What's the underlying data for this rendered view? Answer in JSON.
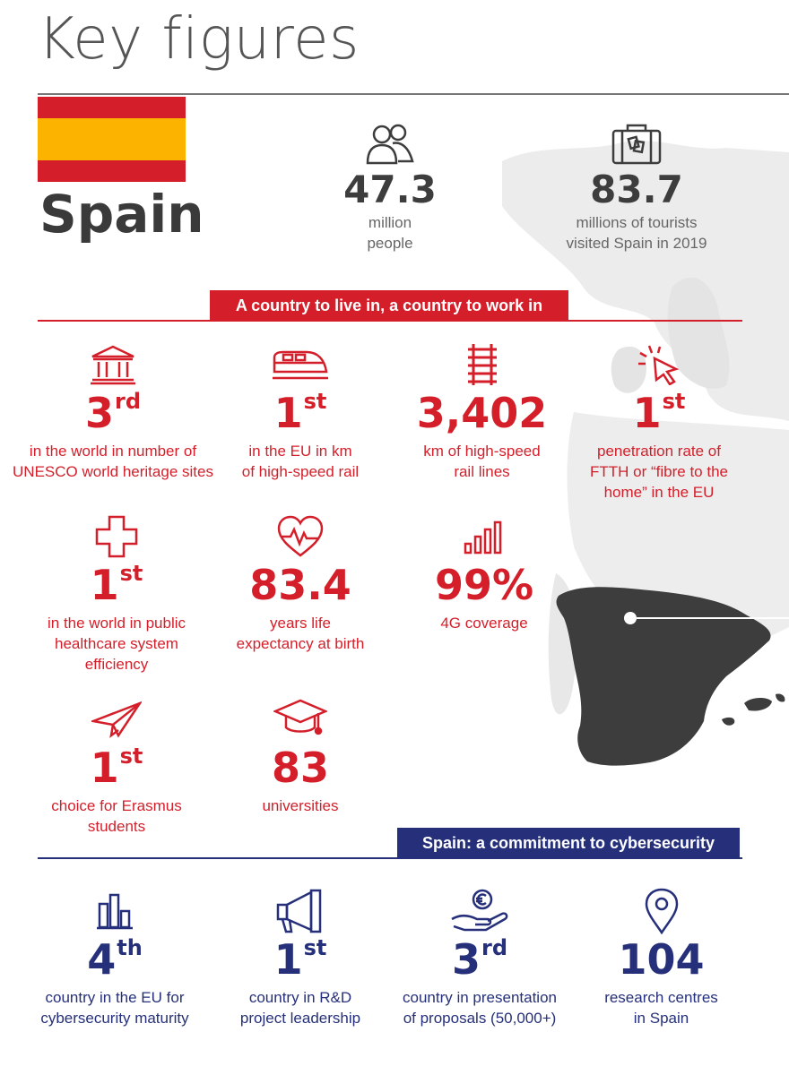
{
  "title": "Key figures",
  "country": "Spain",
  "colors": {
    "red": "#d41f2a",
    "blue": "#26307a",
    "flag_red": "#d41f2a",
    "flag_yellow": "#fbb300",
    "map_dark": "#3d3d3d"
  },
  "hero": [
    {
      "icon": "people-icon",
      "value": "47.3",
      "label_lines": [
        "million",
        "people"
      ]
    },
    {
      "icon": "suitcase-icon",
      "value": "83.7",
      "label_lines": [
        "millions of tourists",
        "visited Spain in 2019"
      ]
    }
  ],
  "section_live": {
    "banner": "A country to live in, a country to work in",
    "items": [
      {
        "icon": "museum-icon",
        "value": "3",
        "suffix": "rd",
        "label_lines": [
          "in the world in number of",
          "UNESCO world heritage sites"
        ]
      },
      {
        "icon": "high-speed-train-icon",
        "value": "1",
        "suffix": "st",
        "label_lines": [
          "in the EU in km",
          "of high-speed rail"
        ]
      },
      {
        "icon": "rail-track-icon",
        "value": "3,402",
        "suffix": "",
        "label_lines": [
          "km of high-speed",
          "rail lines"
        ]
      },
      {
        "icon": "cursor-click-icon",
        "value": "1",
        "suffix": "st",
        "label_lines": [
          "penetration rate of",
          "FTTH or “fibre to the",
          "home” in the EU"
        ]
      },
      {
        "icon": "medical-cross-icon",
        "value": "1",
        "suffix": "st",
        "label_lines": [
          "in the world in public",
          "healthcare system",
          "efficiency"
        ]
      },
      {
        "icon": "heartbeat-icon",
        "value": "83.4",
        "suffix": "",
        "label_lines": [
          "years life",
          "expectancy at birth"
        ]
      },
      {
        "icon": "signal-bars-icon",
        "value": "99%",
        "suffix": "",
        "label_lines": [
          "4G coverage"
        ]
      },
      {
        "icon": "paper-plane-icon",
        "value": "1",
        "suffix": "st",
        "label_lines": [
          "choice for Erasmus",
          "students"
        ]
      },
      {
        "icon": "graduation-cap-icon",
        "value": "83",
        "suffix": "",
        "label_lines": [
          "universities"
        ]
      }
    ]
  },
  "section_cyber": {
    "banner": "Spain: a commitment to cybersecurity",
    "items": [
      {
        "icon": "bar-chart-icon",
        "value": "4",
        "suffix": "th",
        "label_lines": [
          "country in the EU for",
          "cybersecurity maturity"
        ]
      },
      {
        "icon": "megaphone-icon",
        "value": "1",
        "suffix": "st",
        "label_lines": [
          "country in R&D",
          "project leadership"
        ]
      },
      {
        "icon": "euro-hand-icon",
        "value": "3",
        "suffix": "rd",
        "label_lines": [
          "country in presentation",
          "of proposals (50,000+)"
        ]
      },
      {
        "icon": "location-pin-icon",
        "value": "104",
        "suffix": "",
        "label_lines": [
          "research centres",
          "in Spain"
        ]
      }
    ]
  }
}
